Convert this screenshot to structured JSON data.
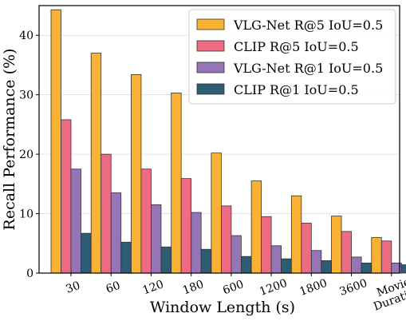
{
  "chart_data": {
    "type": "bar",
    "xlabel": "Window Length (s)",
    "ylabel": "Recall Performance (%)",
    "ylim": [
      0,
      45
    ],
    "yticks": [
      0,
      10,
      20,
      30,
      40
    ],
    "grid": true,
    "legend_position": "top-right",
    "categories": [
      "30",
      "60",
      "120",
      "180",
      "600",
      "1200",
      "1800",
      "3600",
      "Movie\nDuration"
    ],
    "series": [
      {
        "name": "VLG-Net R@5 IoU=0.5",
        "color": "#F9B233",
        "values": [
          44.3,
          37.0,
          33.4,
          30.3,
          20.2,
          15.5,
          13.0,
          9.6,
          6.0
        ]
      },
      {
        "name": "CLIP R@5 IoU=0.5",
        "color": "#EE6B84",
        "values": [
          25.8,
          20.0,
          17.5,
          15.9,
          11.3,
          9.5,
          8.4,
          7.0,
          5.4
        ]
      },
      {
        "name": "VLG-Net R@1 IoU=0.5",
        "color": "#9575B5",
        "values": [
          17.5,
          13.5,
          11.5,
          10.2,
          6.3,
          4.6,
          3.8,
          2.7,
          1.7
        ]
      },
      {
        "name": "CLIP R@1 IoU=0.5",
        "color": "#2E5C73",
        "values": [
          6.7,
          5.2,
          4.4,
          4.0,
          2.8,
          2.4,
          2.1,
          1.7,
          1.4
        ]
      }
    ]
  }
}
